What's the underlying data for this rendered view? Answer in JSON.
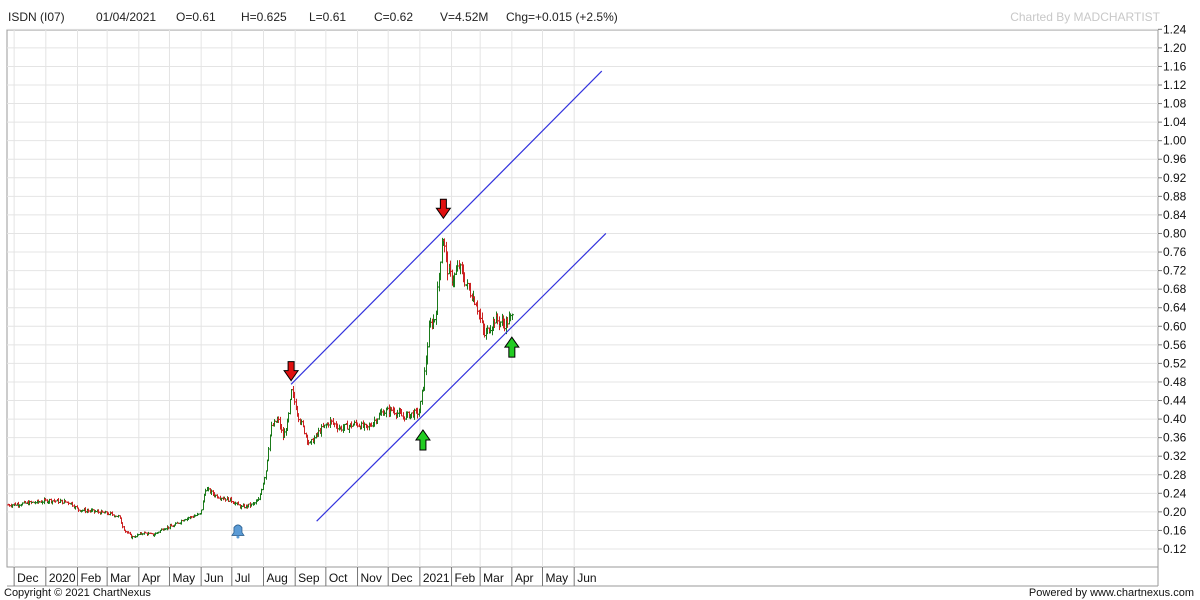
{
  "header": {
    "symbol": "ISDN (I07)",
    "date": "01/04/2021",
    "open": "O=0.61",
    "high": "H=0.625",
    "low": "L=0.61",
    "close": "C=0.62",
    "volume": "V=4.52M",
    "change": "Chg=+0.015 (+2.5%)",
    "charted_by": "Charted By MADCHARTIST"
  },
  "footer": {
    "copyright": "Copyright © 2021 ChartNexus",
    "powered_by": "Powered by www.chartnexus.com"
  },
  "colors": {
    "up_bar": "#1a7a1a",
    "down_bar": "#cc2222",
    "trendline": "#3333dd",
    "grid": "#e4e4e4",
    "arrow_down": "#e01010",
    "arrow_up": "#22cc22",
    "bell": "#5b9bd5"
  },
  "chart_data": {
    "type": "ohlc",
    "title": "ISDN (I07)",
    "x_labels": [
      "Dec",
      "2020",
      "Feb",
      "Mar",
      "Apr",
      "May",
      "Jun",
      "Jul",
      "Aug",
      "Sep",
      "Oct",
      "Nov",
      "Dec",
      "2021",
      "Feb",
      "Mar",
      "Apr",
      "May",
      "Jun"
    ],
    "y_ticks": [
      0.12,
      0.16,
      0.2,
      0.24,
      0.28,
      0.32,
      0.36,
      0.4,
      0.44,
      0.48,
      0.52,
      0.56,
      0.6,
      0.64,
      0.68,
      0.72,
      0.76,
      0.8,
      0.84,
      0.88,
      0.92,
      0.96,
      1.0,
      1.04,
      1.08,
      1.12,
      1.16,
      1.2,
      1.24
    ],
    "ylim": [
      0.1,
      1.25
    ],
    "grid": true,
    "price_path": [
      [
        "2019-11-25",
        0.215
      ],
      [
        "2019-12-20",
        0.22
      ],
      [
        "2020-01-05",
        0.225
      ],
      [
        "2020-01-25",
        0.22
      ],
      [
        "2020-02-01",
        0.205
      ],
      [
        "2020-02-20",
        0.2
      ],
      [
        "2020-03-05",
        0.195
      ],
      [
        "2020-03-12",
        0.19
      ],
      [
        "2020-03-18",
        0.16
      ],
      [
        "2020-03-25",
        0.145
      ],
      [
        "2020-04-05",
        0.155
      ],
      [
        "2020-04-15",
        0.15
      ],
      [
        "2020-04-25",
        0.165
      ],
      [
        "2020-05-05",
        0.17
      ],
      [
        "2020-05-15",
        0.185
      ],
      [
        "2020-05-31",
        0.195
      ],
      [
        "2020-06-05",
        0.25
      ],
      [
        "2020-06-15",
        0.235
      ],
      [
        "2020-06-30",
        0.225
      ],
      [
        "2020-07-10",
        0.21
      ],
      [
        "2020-07-20",
        0.215
      ],
      [
        "2020-07-27",
        0.225
      ],
      [
        "2020-08-03",
        0.29
      ],
      [
        "2020-08-08",
        0.38
      ],
      [
        "2020-08-15",
        0.4
      ],
      [
        "2020-08-20",
        0.36
      ],
      [
        "2020-08-25",
        0.4
      ],
      [
        "2020-08-28",
        0.46
      ],
      [
        "2020-09-05",
        0.4
      ],
      [
        "2020-09-15",
        0.345
      ],
      [
        "2020-09-25",
        0.375
      ],
      [
        "2020-10-05",
        0.395
      ],
      [
        "2020-10-15",
        0.38
      ],
      [
        "2020-10-30",
        0.39
      ],
      [
        "2020-11-10",
        0.38
      ],
      [
        "2020-11-25",
        0.415
      ],
      [
        "2020-12-05",
        0.42
      ],
      [
        "2020-12-15",
        0.405
      ],
      [
        "2020-12-31",
        0.415
      ],
      [
        "2021-01-05",
        0.49
      ],
      [
        "2021-01-10",
        0.6
      ],
      [
        "2021-01-16",
        0.62
      ],
      [
        "2021-01-20",
        0.73
      ],
      [
        "2021-01-23",
        0.8
      ],
      [
        "2021-01-28",
        0.72
      ],
      [
        "2021-02-02",
        0.7
      ],
      [
        "2021-02-08",
        0.73
      ],
      [
        "2021-02-15",
        0.69
      ],
      [
        "2021-02-25",
        0.65
      ],
      [
        "2021-03-05",
        0.58
      ],
      [
        "2021-03-15",
        0.615
      ],
      [
        "2021-03-25",
        0.605
      ],
      [
        "2021-04-01",
        0.62
      ]
    ],
    "trendlines": [
      {
        "from": [
          "2020-08-28",
          0.475
        ],
        "to": [
          "2021-06-28",
          1.15
        ]
      },
      {
        "from": [
          "2020-09-22",
          0.18
        ],
        "to": [
          "2021-07-02",
          0.8
        ]
      }
    ],
    "markers": [
      {
        "type": "arrow-down",
        "date": "2020-08-28",
        "price": 0.5
      },
      {
        "type": "arrow-down",
        "date": "2021-01-24",
        "price": 0.85
      },
      {
        "type": "arrow-up",
        "date": "2021-01-04",
        "price": 0.355
      },
      {
        "type": "arrow-up",
        "date": "2021-04-01",
        "price": 0.555
      },
      {
        "type": "bell",
        "date": "2020-07-07",
        "price": 0.16
      }
    ]
  }
}
